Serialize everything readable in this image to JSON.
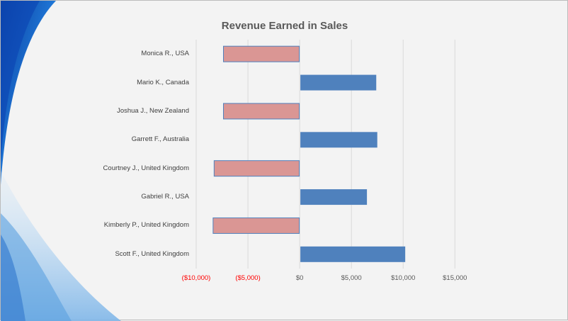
{
  "chart_data": {
    "type": "bar",
    "orientation": "horizontal",
    "title": "Revenue Earned in Sales",
    "categories": [
      "Monica R., USA",
      "Mario K., Canada",
      "Joshua J., New Zealand",
      "Garrett F., Australia",
      "Courtney J., United Kingdom",
      "Gabriel R., USA",
      "Kimberly P., United Kingdom",
      "Scott F., United Kingdom"
    ],
    "values": [
      -7400,
      7400,
      -7400,
      7500,
      -8300,
      6500,
      -8400,
      10200
    ],
    "xlim": [
      -10000,
      15000
    ],
    "xticks": [
      -10000,
      -5000,
      0,
      5000,
      10000,
      15000
    ],
    "xtick_labels": [
      "($10,000)",
      "($5,000)",
      "$0",
      "$5,000",
      "$10,000",
      "$15,000"
    ],
    "grid": true,
    "legend": "none",
    "colors": {
      "positive": "#4f81bd",
      "negative": "#da9694",
      "negative_border": "#4f81bd",
      "negative_tick_label": "#ff0000",
      "tick_label": "#595959",
      "gridline": "#d9d9d9"
    }
  }
}
